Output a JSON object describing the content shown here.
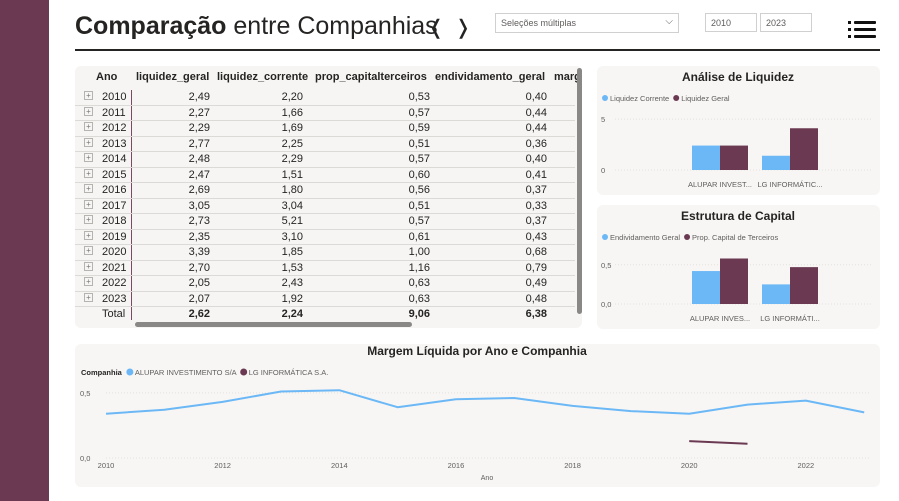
{
  "header": {
    "title_bold": "Comparação",
    "title_rest": " entre Companhias",
    "prev_arrow": "❬",
    "next_arrow": "❭",
    "dropdown_value": "Seleções múltiplas",
    "year_from": "2010",
    "year_to": "2023"
  },
  "table": {
    "columns": [
      "Ano",
      "liquidez_geral",
      "liquidez_corrente",
      "prop_capitalterceiros",
      "endividamento_geral",
      "marg"
    ],
    "rows": [
      [
        "2010",
        "2,49",
        "2,20",
        "0,53",
        "0,40"
      ],
      [
        "2011",
        "2,27",
        "1,66",
        "0,57",
        "0,44"
      ],
      [
        "2012",
        "2,29",
        "1,69",
        "0,59",
        "0,44"
      ],
      [
        "2013",
        "2,77",
        "2,25",
        "0,51",
        "0,36"
      ],
      [
        "2014",
        "2,48",
        "2,29",
        "0,57",
        "0,40"
      ],
      [
        "2015",
        "2,47",
        "1,51",
        "0,60",
        "0,41"
      ],
      [
        "2016",
        "2,69",
        "1,80",
        "0,56",
        "0,37"
      ],
      [
        "2017",
        "3,05",
        "3,04",
        "0,51",
        "0,33"
      ],
      [
        "2018",
        "2,73",
        "5,21",
        "0,57",
        "0,37"
      ],
      [
        "2019",
        "2,35",
        "3,10",
        "0,61",
        "0,43"
      ],
      [
        "2020",
        "3,39",
        "1,85",
        "1,00",
        "0,68"
      ],
      [
        "2021",
        "2,70",
        "1,53",
        "1,16",
        "0,79"
      ],
      [
        "2022",
        "2,05",
        "2,43",
        "0,63",
        "0,49"
      ],
      [
        "2023",
        "2,07",
        "1,92",
        "0,63",
        "0,48"
      ]
    ],
    "total": [
      "Total",
      "2,62",
      "2,24",
      "9,06",
      "6,38"
    ],
    "expand_glyph": "+"
  },
  "colors": {
    "alupar": "#6cb8f6",
    "lg": "#6b3a52",
    "sidebar": "#6b3a52"
  },
  "chart_data": [
    {
      "type": "bar",
      "title": "Análise de Liquidez",
      "categories": [
        "ALUPAR INVEST...",
        "LG INFORMÁTIC..."
      ],
      "series": [
        {
          "name": "Liquidez Corrente",
          "values": [
            2.4,
            1.4
          ]
        },
        {
          "name": "Liquidez Geral",
          "values": [
            2.4,
            4.1
          ]
        }
      ],
      "yticks": [
        "0",
        "5"
      ],
      "ylim": [
        0,
        5.5
      ],
      "legend": "top-left",
      "grid": true
    },
    {
      "type": "bar",
      "title": "Estrutura de Capital",
      "categories": [
        "ALUPAR INVES...",
        "LG INFORMÁTI..."
      ],
      "series": [
        {
          "name": "Endividamento Geral",
          "values": [
            0.42,
            0.25
          ]
        },
        {
          "name": "Prop. Capital de Terceiros",
          "values": [
            0.58,
            0.47
          ]
        }
      ],
      "yticks": [
        "0,0",
        "0,5"
      ],
      "ylim": [
        0,
        0.65
      ],
      "legend": "top-left",
      "grid": true
    },
    {
      "type": "line",
      "title": "Margem Líquida por Ano e Companhia",
      "legend_title": "Companhia",
      "xlabel": "Ano",
      "ylabel": "",
      "xlim": [
        2010,
        2023.1
      ],
      "ylim": [
        0,
        0.56
      ],
      "xticks": [
        "2010",
        "2012",
        "2014",
        "2016",
        "2018",
        "2020",
        "2022"
      ],
      "yticks": [
        "0,0",
        "0,5"
      ],
      "series": [
        {
          "name": "ALUPAR INVESTIMENTO S/A",
          "x": [
            2010,
            2011,
            2012,
            2013,
            2014,
            2015,
            2016,
            2017,
            2018,
            2019,
            2020,
            2021,
            2022,
            2023
          ],
          "y": [
            0.34,
            0.37,
            0.43,
            0.51,
            0.52,
            0.39,
            0.45,
            0.46,
            0.4,
            0.36,
            0.34,
            0.41,
            0.44,
            0.35
          ]
        },
        {
          "name": "LG INFORMÁTICA S.A.",
          "x": [
            2020,
            2021
          ],
          "y": [
            0.13,
            0.11
          ]
        }
      ],
      "grid": true
    }
  ]
}
